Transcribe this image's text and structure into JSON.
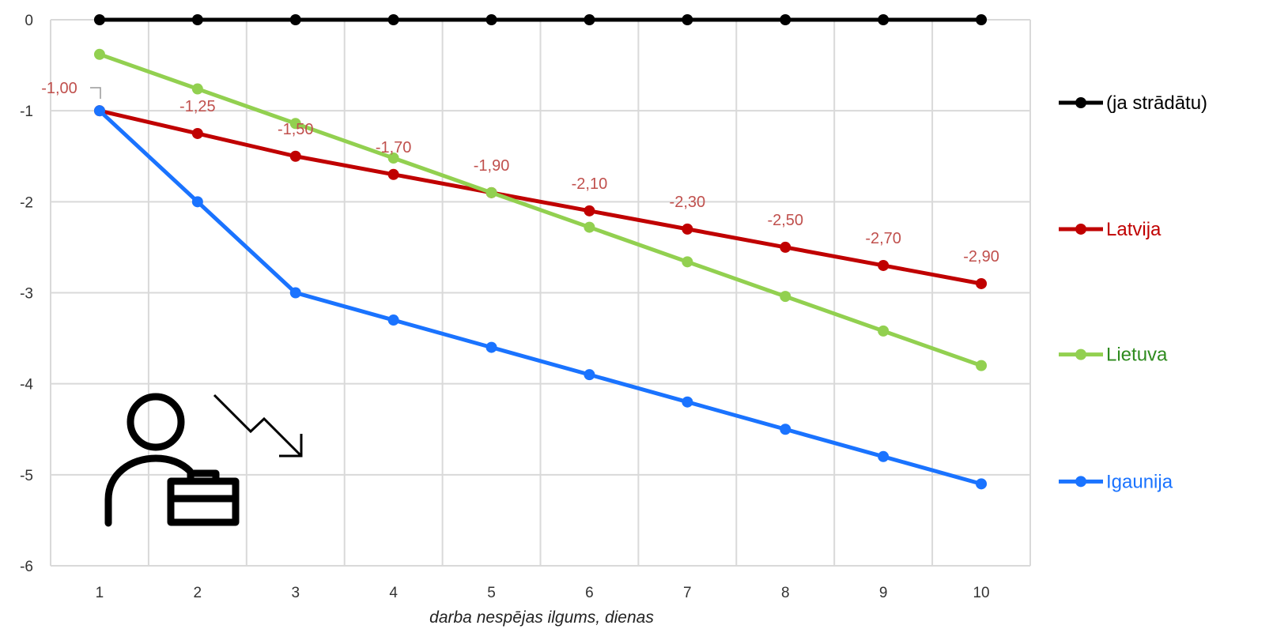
{
  "chart_data": {
    "type": "line",
    "title": "",
    "xlabel": "darba nespējas ilgums, dienas",
    "ylabel": "",
    "x": [
      1,
      2,
      3,
      4,
      5,
      6,
      7,
      8,
      9,
      10
    ],
    "xlim": [
      0.5,
      10.5
    ],
    "ylim": [
      -6,
      0
    ],
    "yticks": [
      0,
      -1,
      -2,
      -3,
      -4,
      -5,
      -6
    ],
    "grid": "vertical and horizontal",
    "legend_position": "right",
    "series": [
      {
        "name": "(ja strādātu)",
        "color": "#000000",
        "values": [
          0,
          0,
          0,
          0,
          0,
          0,
          0,
          0,
          0,
          0
        ]
      },
      {
        "name": "Latvija",
        "color": "#c00000",
        "values": [
          -1.0,
          -1.25,
          -1.5,
          -1.7,
          -1.9,
          -2.1,
          -2.3,
          -2.5,
          -2.7,
          -2.9
        ],
        "data_labels": [
          "-1,00",
          "-1,25",
          "-1,50",
          "-1,70",
          "-1,90",
          "-2,10",
          "-2,30",
          "-2,50",
          "-2,70",
          "-2,90"
        ],
        "label_color": "#c0504d"
      },
      {
        "name": "Lietuva",
        "color": "#92d050",
        "values": [
          -0.38,
          -0.76,
          -1.14,
          -1.52,
          -1.9,
          -2.28,
          -2.66,
          -3.04,
          -3.42,
          -3.8
        ]
      },
      {
        "name": "Igaunija",
        "color": "#1a73ff",
        "values": [
          -1.0,
          -2.0,
          -3.0,
          -3.3,
          -3.6,
          -3.9,
          -4.2,
          -4.5,
          -4.8,
          -5.1
        ]
      }
    ],
    "legend_text_colors": [
      "#000000",
      "#c00000",
      "#2e8b1e",
      "#1a73ff"
    ],
    "icons": [
      "person-with-briefcase-icon",
      "trend-down-arrow-icon"
    ]
  }
}
